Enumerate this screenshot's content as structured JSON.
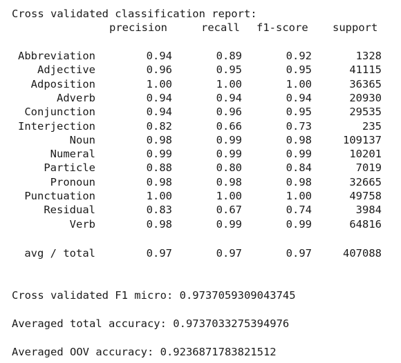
{
  "report": {
    "title": "Cross validated classification report:",
    "headers": {
      "precision": "precision",
      "recall": "recall",
      "f1": "f1-score",
      "support": "support"
    },
    "rows": [
      {
        "label": "Abbreviation",
        "precision": "0.94",
        "recall": "0.89",
        "f1": "0.92",
        "support": "1328"
      },
      {
        "label": "Adjective",
        "precision": "0.96",
        "recall": "0.95",
        "f1": "0.95",
        "support": "41115"
      },
      {
        "label": "Adposition",
        "precision": "1.00",
        "recall": "1.00",
        "f1": "1.00",
        "support": "36365"
      },
      {
        "label": "Adverb",
        "precision": "0.94",
        "recall": "0.94",
        "f1": "0.94",
        "support": "20930"
      },
      {
        "label": "Conjunction",
        "precision": "0.94",
        "recall": "0.96",
        "f1": "0.95",
        "support": "29535"
      },
      {
        "label": "Interjection",
        "precision": "0.82",
        "recall": "0.66",
        "f1": "0.73",
        "support": "235"
      },
      {
        "label": "Noun",
        "precision": "0.98",
        "recall": "0.99",
        "f1": "0.98",
        "support": "109137"
      },
      {
        "label": "Numeral",
        "precision": "0.99",
        "recall": "0.99",
        "f1": "0.99",
        "support": "10201"
      },
      {
        "label": "Particle",
        "precision": "0.88",
        "recall": "0.80",
        "f1": "0.84",
        "support": "7019"
      },
      {
        "label": "Pronoun",
        "precision": "0.98",
        "recall": "0.98",
        "f1": "0.98",
        "support": "32665"
      },
      {
        "label": "Punctuation",
        "precision": "1.00",
        "recall": "1.00",
        "f1": "1.00",
        "support": "49758"
      },
      {
        "label": "Residual",
        "precision": "0.83",
        "recall": "0.67",
        "f1": "0.74",
        "support": "3984"
      },
      {
        "label": "Verb",
        "precision": "0.98",
        "recall": "0.99",
        "f1": "0.99",
        "support": "64816"
      }
    ],
    "total": {
      "label": "avg / total",
      "precision": "0.97",
      "recall": "0.97",
      "f1": "0.97",
      "support": "407088"
    }
  },
  "summary": {
    "f1_micro": "Cross validated F1 micro: 0.9737059309043745",
    "total_accuracy": "Averaged total accuracy: 0.9737033275394976",
    "oov_accuracy": "Averaged OOV accuracy: 0.9236871783821512"
  }
}
